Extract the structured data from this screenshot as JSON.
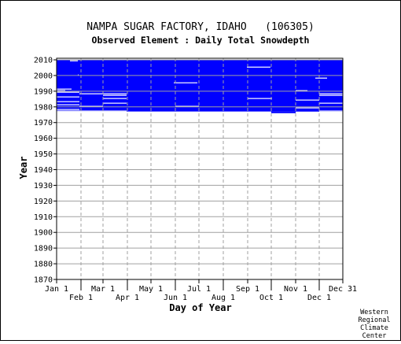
{
  "chart_data": {
    "type": "heatmap",
    "title": "NAMPA SUGAR FACTORY, IDAHO   (106305)",
    "subtitle": "Observed Element : Daily Total Snowdepth",
    "xlabel": "Day of Year",
    "ylabel": "Year",
    "credit": [
      "Western",
      "Regional",
      "Climate",
      "Center"
    ],
    "fill_color": "#0000ff",
    "grid": true,
    "ylim": [
      1870,
      2011
    ],
    "xlim": [
      1,
      365
    ],
    "y_ticks": [
      2010,
      2000,
      1990,
      1980,
      1970,
      1960,
      1950,
      1940,
      1930,
      1920,
      1910,
      1900,
      1890,
      1880,
      1870
    ],
    "x_ticks": [
      {
        "label": "Jan 1",
        "day": 1,
        "row": 1
      },
      {
        "label": "Feb 1",
        "day": 32,
        "row": 2
      },
      {
        "label": "Mar 1",
        "day": 60,
        "row": 1
      },
      {
        "label": "Apr 1",
        "day": 91,
        "row": 2
      },
      {
        "label": "May 1",
        "day": 121,
        "row": 1
      },
      {
        "label": "Jun 1",
        "day": 152,
        "row": 2
      },
      {
        "label": "Jul 1",
        "day": 182,
        "row": 1
      },
      {
        "label": "Aug 1",
        "day": 213,
        "row": 2
      },
      {
        "label": "Sep 1",
        "day": 244,
        "row": 1
      },
      {
        "label": "Oct 1",
        "day": 274,
        "row": 2
      },
      {
        "label": "Nov 1",
        "day": 305,
        "row": 1
      },
      {
        "label": "Dec 1",
        "day": 335,
        "row": 2
      },
      {
        "label": "Dec 31",
        "day": 365,
        "row": 1
      }
    ],
    "coverage": {
      "start_year": 1977,
      "end_year": 2010,
      "start_day": 1,
      "end_day": 365
    },
    "gaps": [
      {
        "year": 2010,
        "start_day": 1,
        "end_day": 365
      },
      {
        "year": 2009,
        "start_day": 18,
        "end_day": 28
      },
      {
        "year": 2005,
        "start_day": 243,
        "end_day": 273
      },
      {
        "year": 2000,
        "start_day": 28,
        "end_day": 29
      },
      {
        "year": 1998,
        "start_day": 330,
        "end_day": 345
      },
      {
        "year": 1995,
        "start_day": 150,
        "end_day": 180
      },
      {
        "year": 1991,
        "start_day": 1,
        "end_day": 20
      },
      {
        "year": 1990,
        "start_day": 1,
        "end_day": 12
      },
      {
        "year": 1990,
        "start_day": 305,
        "end_day": 320
      },
      {
        "year": 1989,
        "start_day": 1,
        "end_day": 30
      },
      {
        "year": 1988,
        "start_day": 30,
        "end_day": 90
      },
      {
        "year": 1988,
        "start_day": 335,
        "end_day": 365
      },
      {
        "year": 1987,
        "start_day": 60,
        "end_day": 90
      },
      {
        "year": 1987,
        "start_day": 335,
        "end_day": 365
      },
      {
        "year": 1986,
        "start_day": 1,
        "end_day": 30
      },
      {
        "year": 1985,
        "start_day": 60,
        "end_day": 90
      },
      {
        "year": 1985,
        "start_day": 244,
        "end_day": 275
      },
      {
        "year": 1984,
        "start_day": 305,
        "end_day": 335
      },
      {
        "year": 1983,
        "start_day": 1,
        "end_day": 30
      },
      {
        "year": 1982,
        "start_day": 60,
        "end_day": 90
      },
      {
        "year": 1982,
        "start_day": 335,
        "end_day": 365
      },
      {
        "year": 1981,
        "start_day": 1,
        "end_day": 30
      },
      {
        "year": 1980,
        "start_day": 30,
        "end_day": 60
      },
      {
        "year": 1980,
        "start_day": 152,
        "end_day": 182
      },
      {
        "year": 1979,
        "start_day": 305,
        "end_day": 335
      },
      {
        "year": 1978,
        "start_day": 1,
        "end_day": 30
      },
      {
        "year": 1977,
        "start_day": 1,
        "end_day": 60
      },
      {
        "year": 1977,
        "start_day": 60,
        "end_day": 90
      },
      {
        "year": 1977,
        "start_day": 335,
        "end_day": 365
      },
      {
        "year": 1976,
        "start_day": 1,
        "end_day": 274
      },
      {
        "year": 1976,
        "start_day": 305,
        "end_day": 365
      }
    ],
    "early_extension": [
      {
        "year": 1976,
        "start_day": 274,
        "end_day": 305
      }
    ]
  }
}
